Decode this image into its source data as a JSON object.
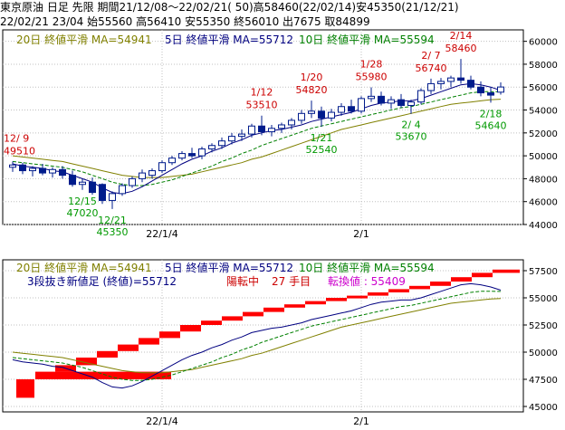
{
  "header": {
    "line1": "東京原油 日足 先限 期間21/12/08～22/02/21( 50)高58460(22/02/14)安45350(21/12/21)",
    "line2": "22/02/21 23/04 始55560 高56410 安55350 終56010 出7675 取84899"
  },
  "colors": {
    "up": "#ffffff",
    "down": "#001c8c",
    "ma20": "#808000",
    "ma5": "#000080",
    "ma10": "#008000",
    "high_label": "#cc0000",
    "low_label": "#009900",
    "brick": "#ff0000",
    "pivot": "#cc00cc"
  },
  "main_chart": {
    "legend": {
      "ma20": "20日 終値平滑 MA=54941",
      "ma5": "5日 終値平滑 MA=55712",
      "ma10": "10日 終値平滑 MA=55594"
    },
    "y_ticks": [
      "60000",
      "58000",
      "56000",
      "54000",
      "52000",
      "50000",
      "48000",
      "46000",
      "44000"
    ],
    "x_ticks": [
      "22/1/4",
      "2/1"
    ],
    "annotations": [
      {
        "date": "12/ 9",
        "value": "49510",
        "kind": "high"
      },
      {
        "date": "12/15",
        "value": "47020",
        "kind": "low"
      },
      {
        "date": "12/21",
        "value": "45350",
        "kind": "low"
      },
      {
        "date": "1/12",
        "value": "53510",
        "kind": "high"
      },
      {
        "date": "1/20",
        "value": "54820",
        "kind": "high"
      },
      {
        "date": "1/21",
        "value": "52540",
        "kind": "low"
      },
      {
        "date": "1/28",
        "value": "55980",
        "kind": "high"
      },
      {
        "date": "2/ 4",
        "value": "53670",
        "kind": "low"
      },
      {
        "date": "2/ 7",
        "value": "56740",
        "kind": "high"
      },
      {
        "date": "2/14",
        "value": "58460",
        "kind": "high"
      },
      {
        "date": "2/18",
        "value": "54640",
        "kind": "low"
      }
    ]
  },
  "sub_chart": {
    "legend": {
      "ma20": "20日 終値平滑 MA=54941",
      "ma5": "5日 終値平滑 MA=55712",
      "ma10": "10日 終値平滑 MA=55594"
    },
    "info": {
      "method": "3段抜き新値足 (終値)=55712",
      "status": "陽転中",
      "count": "27 手目",
      "pivot": "転換値 : 55409"
    },
    "y_ticks": [
      "57500",
      "55000",
      "52500",
      "50000",
      "47500",
      "45000"
    ],
    "x_ticks": [
      "22/1/4",
      "2/1"
    ]
  },
  "chart_data": [
    {
      "type": "candlestick",
      "ylim": [
        44000,
        61000
      ],
      "x_ticks": [
        "22/1/4",
        "2/1"
      ],
      "candles": [
        {
          "o": 49000,
          "h": 49510,
          "l": 48600,
          "c": 49200
        },
        {
          "o": 49200,
          "h": 49400,
          "l": 48400,
          "c": 48700
        },
        {
          "o": 48700,
          "h": 49100,
          "l": 48200,
          "c": 48900
        },
        {
          "o": 48900,
          "h": 49300,
          "l": 48300,
          "c": 48500
        },
        {
          "o": 48500,
          "h": 49000,
          "l": 48100,
          "c": 48800
        },
        {
          "o": 48800,
          "h": 49100,
          "l": 48000,
          "c": 48300
        },
        {
          "o": 48300,
          "h": 48700,
          "l": 47300,
          "c": 47500
        },
        {
          "o": 47500,
          "h": 48000,
          "l": 47020,
          "c": 47700
        },
        {
          "o": 47700,
          "h": 48100,
          "l": 46600,
          "c": 46800
        },
        {
          "o": 47500,
          "h": 47600,
          "l": 45800,
          "c": 46100
        },
        {
          "o": 46100,
          "h": 46900,
          "l": 45350,
          "c": 46700
        },
        {
          "o": 46700,
          "h": 47600,
          "l": 46500,
          "c": 47400
        },
        {
          "o": 47400,
          "h": 48200,
          "l": 47200,
          "c": 48000
        },
        {
          "o": 48000,
          "h": 48800,
          "l": 47700,
          "c": 48500
        },
        {
          "o": 48300,
          "h": 48900,
          "l": 48000,
          "c": 48700
        },
        {
          "o": 48700,
          "h": 49600,
          "l": 48500,
          "c": 49400
        },
        {
          "o": 49400,
          "h": 50000,
          "l": 49200,
          "c": 49800
        },
        {
          "o": 49800,
          "h": 50400,
          "l": 49600,
          "c": 50200
        },
        {
          "o": 50200,
          "h": 50700,
          "l": 49800,
          "c": 50000
        },
        {
          "o": 50000,
          "h": 50800,
          "l": 49700,
          "c": 50600
        },
        {
          "o": 50600,
          "h": 51100,
          "l": 50300,
          "c": 50900
        },
        {
          "o": 50900,
          "h": 51600,
          "l": 50600,
          "c": 51300
        },
        {
          "o": 51300,
          "h": 52000,
          "l": 51000,
          "c": 51700
        },
        {
          "o": 51700,
          "h": 52300,
          "l": 51300,
          "c": 51900
        },
        {
          "o": 51900,
          "h": 52800,
          "l": 51600,
          "c": 52600
        },
        {
          "o": 52600,
          "h": 53510,
          "l": 51800,
          "c": 52100
        },
        {
          "o": 52100,
          "h": 52700,
          "l": 51700,
          "c": 52400
        },
        {
          "o": 52400,
          "h": 52900,
          "l": 52000,
          "c": 52700
        },
        {
          "o": 52700,
          "h": 53300,
          "l": 52300,
          "c": 53100
        },
        {
          "o": 53100,
          "h": 54000,
          "l": 52800,
          "c": 53700
        },
        {
          "o": 53700,
          "h": 54820,
          "l": 53300,
          "c": 53900
        },
        {
          "o": 53900,
          "h": 54300,
          "l": 52540,
          "c": 53300
        },
        {
          "o": 53300,
          "h": 54100,
          "l": 53000,
          "c": 53800
        },
        {
          "o": 53800,
          "h": 54600,
          "l": 53500,
          "c": 54300
        },
        {
          "o": 54300,
          "h": 54900,
          "l": 53700,
          "c": 53900
        },
        {
          "o": 53900,
          "h": 55200,
          "l": 53700,
          "c": 55000
        },
        {
          "o": 55000,
          "h": 55980,
          "l": 54700,
          "c": 55200
        },
        {
          "o": 55200,
          "h": 55600,
          "l": 54400,
          "c": 54600
        },
        {
          "o": 54600,
          "h": 55200,
          "l": 54100,
          "c": 54900
        },
        {
          "o": 54900,
          "h": 55400,
          "l": 54200,
          "c": 54400
        },
        {
          "o": 54400,
          "h": 54900,
          "l": 53670,
          "c": 54700
        },
        {
          "o": 54700,
          "h": 55900,
          "l": 54500,
          "c": 55700
        },
        {
          "o": 55700,
          "h": 56740,
          "l": 55400,
          "c": 56300
        },
        {
          "o": 56300,
          "h": 56800,
          "l": 55800,
          "c": 56500
        },
        {
          "o": 56500,
          "h": 57000,
          "l": 56000,
          "c": 56800
        },
        {
          "o": 56800,
          "h": 58460,
          "l": 56300,
          "c": 56600
        },
        {
          "o": 56600,
          "h": 57000,
          "l": 55800,
          "c": 56000
        },
        {
          "o": 56000,
          "h": 56500,
          "l": 55200,
          "c": 55500
        },
        {
          "o": 55500,
          "h": 56000,
          "l": 54640,
          "c": 55300
        },
        {
          "o": 55560,
          "h": 56410,
          "l": 55350,
          "c": 56010
        }
      ],
      "ma5": [
        49300,
        49100,
        49000,
        48900,
        48700,
        48600,
        48300,
        48000,
        47700,
        47200,
        46800,
        46700,
        46900,
        47300,
        47800,
        48300,
        48800,
        49300,
        49700,
        50000,
        50400,
        50700,
        51100,
        51400,
        51800,
        52000,
        52200,
        52300,
        52500,
        52700,
        53000,
        53200,
        53400,
        53600,
        53800,
        54100,
        54400,
        54600,
        54700,
        54800,
        54800,
        55000,
        55300,
        55600,
        55900,
        56200,
        56300,
        56200,
        56000,
        55712
      ],
      "ma10": [
        49500,
        49400,
        49300,
        49200,
        49100,
        49000,
        48800,
        48600,
        48300,
        48000,
        47700,
        47500,
        47400,
        47400,
        47500,
        47700,
        47900,
        48200,
        48500,
        48800,
        49100,
        49500,
        49800,
        50200,
        50500,
        50900,
        51200,
        51500,
        51800,
        52100,
        52400,
        52600,
        52800,
        53000,
        53200,
        53400,
        53600,
        53800,
        54000,
        54200,
        54300,
        54500,
        54700,
        54900,
        55100,
        55300,
        55500,
        55600,
        55600,
        55594
      ],
      "ma20": [
        50000,
        49900,
        49800,
        49700,
        49600,
        49500,
        49300,
        49100,
        48900,
        48700,
        48500,
        48300,
        48200,
        48100,
        48100,
        48100,
        48200,
        48300,
        48400,
        48600,
        48800,
        49000,
        49200,
        49400,
        49700,
        49900,
        50200,
        50500,
        50800,
        51100,
        51400,
        51700,
        52000,
        52300,
        52500,
        52700,
        52900,
        53100,
        53300,
        53500,
        53700,
        53900,
        54100,
        54300,
        54500,
        54600,
        54700,
        54800,
        54900,
        54941
      ]
    },
    {
      "type": "bar",
      "title": "3段抜き新値足 (終値)",
      "ylim": [
        44500,
        58500
      ],
      "x_ticks": [
        "22/1/4",
        "2/1"
      ],
      "bricks": [
        {
          "i": 0,
          "lo": 45800,
          "hi": 47500,
          "kind": "down"
        },
        {
          "i": 1,
          "lo": 47500,
          "hi": 48200,
          "kind": "up"
        },
        {
          "i": 2,
          "lo": 48200,
          "hi": 48800,
          "kind": "up"
        },
        {
          "i": 3,
          "lo": 48800,
          "hi": 49500,
          "kind": "up"
        },
        {
          "i": 4,
          "lo": 49500,
          "hi": 50100,
          "kind": "up"
        },
        {
          "i": 5,
          "lo": 50100,
          "hi": 50700,
          "kind": "up"
        },
        {
          "i": 6,
          "lo": 50700,
          "hi": 51300,
          "kind": "up"
        },
        {
          "i": 7,
          "lo": 51300,
          "hi": 51900,
          "kind": "up"
        },
        {
          "i": 8,
          "lo": 51900,
          "hi": 52500,
          "kind": "up"
        },
        {
          "i": 9,
          "lo": 52500,
          "hi": 52900,
          "kind": "up"
        },
        {
          "i": 10,
          "lo": 52900,
          "hi": 53300,
          "kind": "up"
        },
        {
          "i": 11,
          "lo": 53300,
          "hi": 53700,
          "kind": "up"
        },
        {
          "i": 12,
          "lo": 53700,
          "hi": 54100,
          "kind": "up"
        },
        {
          "i": 13,
          "lo": 54100,
          "hi": 54400,
          "kind": "up"
        },
        {
          "i": 14,
          "lo": 54400,
          "hi": 54700,
          "kind": "up"
        },
        {
          "i": 15,
          "lo": 54700,
          "hi": 55000,
          "kind": "up"
        },
        {
          "i": 16,
          "lo": 55000,
          "hi": 55200,
          "kind": "up"
        },
        {
          "i": 17,
          "lo": 55200,
          "hi": 55500,
          "kind": "up"
        },
        {
          "i": 18,
          "lo": 55500,
          "hi": 55800,
          "kind": "up"
        },
        {
          "i": 19,
          "lo": 55800,
          "hi": 56100,
          "kind": "up"
        },
        {
          "i": 20,
          "lo": 56100,
          "hi": 56500,
          "kind": "up"
        },
        {
          "i": 21,
          "lo": 56500,
          "hi": 56900,
          "kind": "up"
        },
        {
          "i": 22,
          "lo": 56900,
          "hi": 57300,
          "kind": "up"
        },
        {
          "i": 23,
          "lo": 57300,
          "hi": 57600,
          "kind": "up"
        }
      ]
    }
  ]
}
